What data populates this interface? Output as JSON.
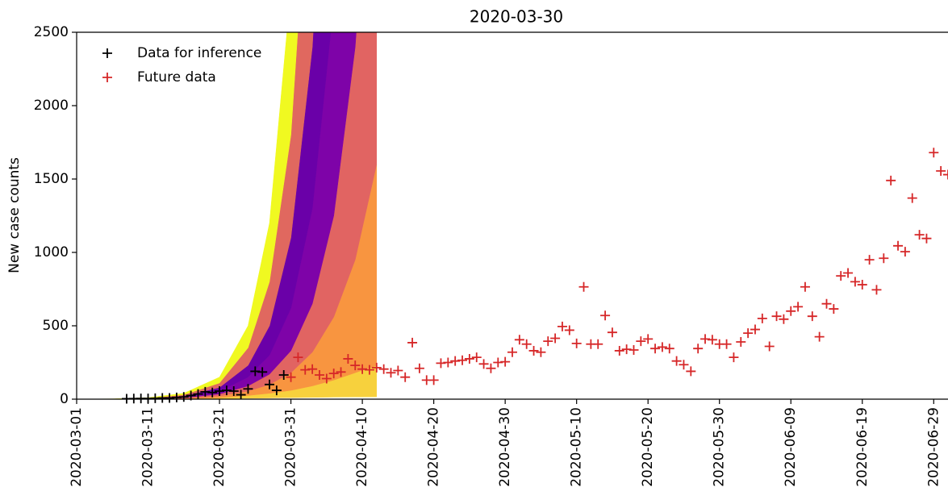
{
  "chart_data": {
    "type": "scatter",
    "title": "2020-03-30",
    "y_label": "New case counts",
    "xlim": [
      "2020-03-01",
      "2020-07-01"
    ],
    "xticks": [
      "2020-03-01",
      "2020-03-11",
      "2020-03-21",
      "2020-03-31",
      "2020-04-10",
      "2020-04-20",
      "2020-04-30",
      "2020-05-10",
      "2020-05-20",
      "2020-05-30",
      "2020-06-09",
      "2020-06-19",
      "2020-06-29"
    ],
    "ylim": [
      0,
      2500
    ],
    "yticks": [
      0,
      500,
      1000,
      1500,
      2000,
      2500
    ],
    "legend": "upper left",
    "fan": {
      "x": [
        "2020-03-01",
        "2020-03-06",
        "2020-03-11",
        "2020-03-16",
        "2020-03-21",
        "2020-03-25",
        "2020-03-28",
        "2020-03-31",
        "2020-04-03",
        "2020-04-06",
        "2020-04-09",
        "2020-04-12"
      ],
      "curves": [
        [
          0,
          0,
          0,
          1,
          3,
          6,
          8,
          10,
          12,
          14,
          15,
          16
        ],
        [
          0,
          0,
          1,
          3,
          10,
          25,
          40,
          60,
          90,
          130,
          180,
          230
        ],
        [
          0,
          0,
          2,
          6,
          22,
          55,
          100,
          180,
          320,
          560,
          950,
          1600
        ],
        [
          0,
          0,
          3,
          10,
          35,
          90,
          170,
          330,
          650,
          1250,
          2400,
          4500
        ],
        [
          0,
          1,
          4,
          15,
          55,
          150,
          300,
          620,
          1300,
          2700,
          5500,
          11000
        ],
        [
          0,
          1,
          5,
          22,
          80,
          230,
          500,
          1100,
          2400,
          5000,
          10000,
          20000
        ],
        [
          0,
          1,
          7,
          30,
          110,
          350,
          800,
          1800,
          4000,
          8500,
          18000,
          35000
        ],
        [
          0,
          2,
          10,
          40,
          150,
          500,
          1200,
          2800,
          6000,
          12000,
          25000,
          50000
        ]
      ],
      "colors": [
        "#f7d13d",
        "#f89540",
        "#e16462",
        "#7e03a8",
        "#6a00a8",
        "#e0685f",
        "#f0f921"
      ]
    },
    "series": [
      {
        "name": "Data for inference",
        "color": "#000000",
        "x": [
          "2020-03-08",
          "2020-03-09",
          "2020-03-10",
          "2020-03-11",
          "2020-03-12",
          "2020-03-13",
          "2020-03-14",
          "2020-03-15",
          "2020-03-16",
          "2020-03-17",
          "2020-03-18",
          "2020-03-19",
          "2020-03-20",
          "2020-03-21",
          "2020-03-22",
          "2020-03-23",
          "2020-03-24",
          "2020-03-25",
          "2020-03-26",
          "2020-03-27",
          "2020-03-28",
          "2020-03-29",
          "2020-03-30"
        ],
        "values": [
          3,
          4,
          5,
          5,
          6,
          8,
          8,
          12,
          15,
          25,
          35,
          50,
          45,
          55,
          60,
          55,
          30,
          70,
          190,
          185,
          100,
          60,
          165
        ]
      },
      {
        "name": "Future data",
        "color": "#d62728",
        "x": [
          "2020-03-31",
          "2020-04-01",
          "2020-04-02",
          "2020-04-03",
          "2020-04-04",
          "2020-04-05",
          "2020-04-06",
          "2020-04-07",
          "2020-04-08",
          "2020-04-09",
          "2020-04-10",
          "2020-04-11",
          "2020-04-12",
          "2020-04-13",
          "2020-04-14",
          "2020-04-15",
          "2020-04-16",
          "2020-04-17",
          "2020-04-18",
          "2020-04-19",
          "2020-04-20",
          "2020-04-21",
          "2020-04-22",
          "2020-04-23",
          "2020-04-24",
          "2020-04-25",
          "2020-04-26",
          "2020-04-27",
          "2020-04-28",
          "2020-04-29",
          "2020-04-30",
          "2020-05-01",
          "2020-05-02",
          "2020-05-03",
          "2020-05-04",
          "2020-05-05",
          "2020-05-06",
          "2020-05-07",
          "2020-05-08",
          "2020-05-09",
          "2020-05-10",
          "2020-05-11",
          "2020-05-12",
          "2020-05-13",
          "2020-05-14",
          "2020-05-15",
          "2020-05-16",
          "2020-05-17",
          "2020-05-18",
          "2020-05-19",
          "2020-05-20",
          "2020-05-21",
          "2020-05-22",
          "2020-05-23",
          "2020-05-24",
          "2020-05-25",
          "2020-05-26",
          "2020-05-27",
          "2020-05-28",
          "2020-05-29",
          "2020-05-30",
          "2020-05-31",
          "2020-06-01",
          "2020-06-02",
          "2020-06-03",
          "2020-06-04",
          "2020-06-05",
          "2020-06-06",
          "2020-06-07",
          "2020-06-08",
          "2020-06-09",
          "2020-06-10",
          "2020-06-11",
          "2020-06-12",
          "2020-06-13",
          "2020-06-14",
          "2020-06-15",
          "2020-06-16",
          "2020-06-17",
          "2020-06-18",
          "2020-06-19",
          "2020-06-20",
          "2020-06-21",
          "2020-06-22",
          "2020-06-23",
          "2020-06-24",
          "2020-06-25",
          "2020-06-26",
          "2020-06-27",
          "2020-06-28",
          "2020-06-29",
          "2020-06-30",
          "2020-07-01"
        ],
        "values": [
          150,
          285,
          200,
          205,
          165,
          140,
          175,
          185,
          275,
          230,
          205,
          200,
          215,
          205,
          180,
          195,
          150,
          385,
          210,
          130,
          130,
          245,
          250,
          260,
          265,
          275,
          285,
          240,
          210,
          250,
          255,
          320,
          405,
          375,
          330,
          320,
          395,
          415,
          495,
          470,
          380,
          765,
          375,
          375,
          570,
          455,
          330,
          340,
          335,
          395,
          410,
          345,
          355,
          345,
          260,
          235,
          190,
          345,
          410,
          405,
          375,
          375,
          285,
          390,
          450,
          475,
          550,
          360,
          565,
          545,
          600,
          630,
          765,
          565,
          425,
          650,
          615,
          840,
          860,
          800,
          780,
          950,
          745,
          960,
          1490,
          1045,
          1005,
          1370,
          1120,
          1095,
          1680,
          1555,
          1530
        ]
      }
    ]
  }
}
